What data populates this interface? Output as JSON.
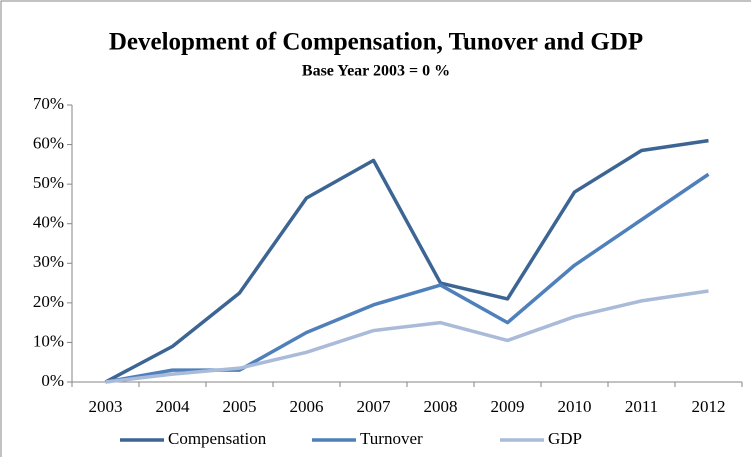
{
  "chart_data": {
    "type": "line",
    "title": "Development of Compensation, Tunover and GDP",
    "subtitle": "Base Year 2003 = 0 %",
    "categories": [
      "2003",
      "2004",
      "2005",
      "2006",
      "2007",
      "2008",
      "2009",
      "2010",
      "2011",
      "2012"
    ],
    "series": [
      {
        "name": "Compensation",
        "color": "#3d6594",
        "values": [
          0,
          9,
          22.5,
          46.5,
          56,
          25,
          21,
          48,
          58.5,
          61
        ]
      },
      {
        "name": "Turnover",
        "color": "#4f80bb",
        "values": [
          0,
          3,
          3,
          12.5,
          19.5,
          24.5,
          15,
          29.5,
          41,
          52.5
        ]
      },
      {
        "name": "GDP",
        "color": "#a9bbd8",
        "values": [
          0,
          2,
          3.5,
          7.5,
          13,
          15,
          10.5,
          16.5,
          20.5,
          23
        ]
      }
    ],
    "ylim": [
      0,
      70
    ],
    "yticks": [
      {
        "value": 0,
        "label": "0%"
      },
      {
        "value": 10,
        "label": "10%"
      },
      {
        "value": 20,
        "label": "20%"
      },
      {
        "value": 30,
        "label": "30%"
      },
      {
        "value": 40,
        "label": "40%"
      },
      {
        "value": 50,
        "label": "50%"
      },
      {
        "value": 60,
        "label": "60%"
      },
      {
        "value": 70,
        "label": "70%"
      }
    ],
    "grid": false,
    "legend": "bottom"
  }
}
